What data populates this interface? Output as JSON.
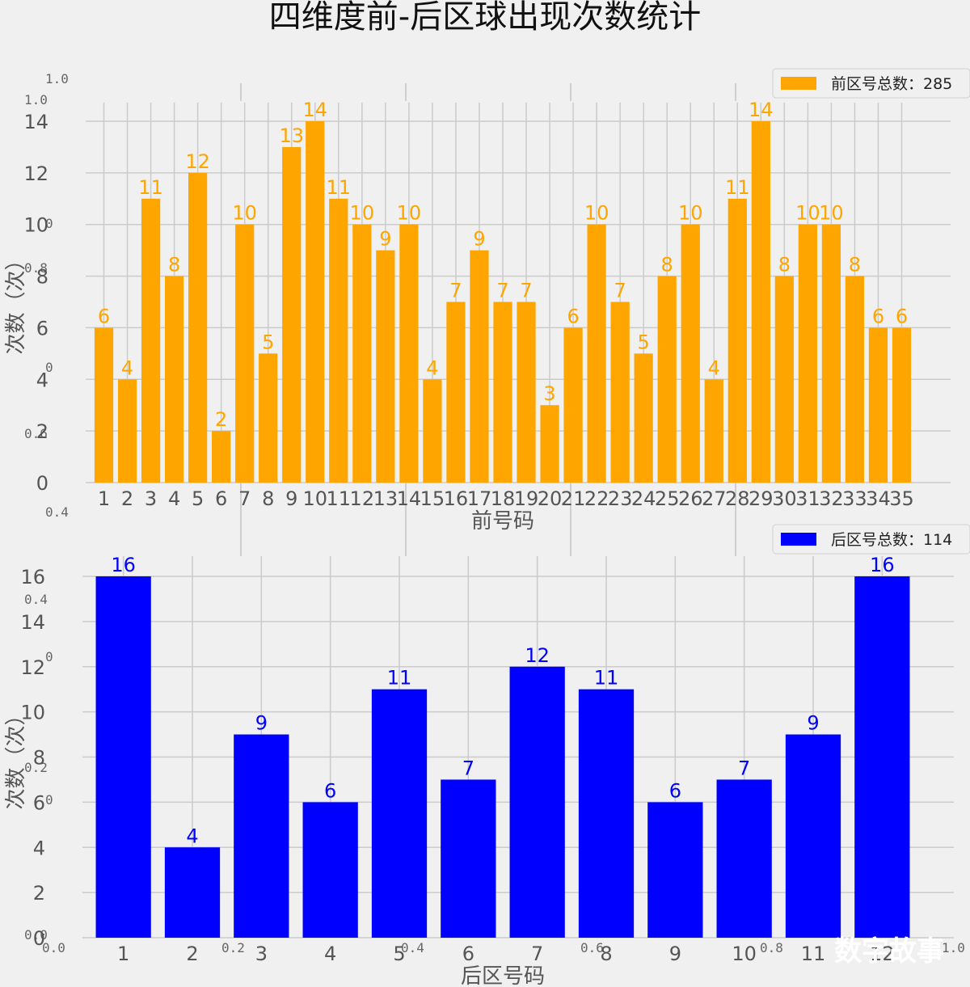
{
  "title": "四维度前-后区球出现次数统计",
  "watermark": "数字故事",
  "ghost_ticks": {
    "left": [
      "1.0",
      "1.0",
      "0",
      "0.8",
      "0",
      "0.6",
      "0.4",
      "0.4",
      "0",
      "0.2",
      "0",
      "0.0"
    ],
    "bottom": [
      "0.0",
      "0.2",
      "0.4",
      "0.6",
      "0.8",
      "1.0"
    ]
  },
  "chart_data": [
    {
      "type": "bar",
      "color": "#FFA500",
      "legend": "前区号总数：285",
      "legend_position": "top-right",
      "xlabel": "前号码",
      "ylabel": "次数（次）",
      "ylim": [
        0,
        14
      ],
      "yticks": [
        0,
        2,
        4,
        6,
        8,
        10,
        12,
        14
      ],
      "grid": true,
      "categories": [
        "1",
        "2",
        "3",
        "4",
        "5",
        "6",
        "7",
        "8",
        "9",
        "10",
        "11",
        "12",
        "13",
        "14",
        "15",
        "16",
        "17",
        "18",
        "19",
        "20",
        "21",
        "22",
        "23",
        "24",
        "25",
        "26",
        "27",
        "28",
        "29",
        "30",
        "31",
        "32",
        "33",
        "34",
        "35"
      ],
      "values": [
        6,
        4,
        11,
        8,
        12,
        2,
        10,
        5,
        13,
        14,
        11,
        10,
        9,
        10,
        4,
        7,
        9,
        7,
        7,
        3,
        6,
        10,
        7,
        5,
        8,
        10,
        4,
        11,
        14,
        8,
        10,
        10,
        8,
        6,
        6
      ]
    },
    {
      "type": "bar",
      "color": "#0000FF",
      "legend": "后区号总数：114",
      "legend_position": "top-right",
      "xlabel": "后区号码",
      "ylabel": "次数（次）",
      "ylim": [
        0,
        16
      ],
      "yticks": [
        0,
        2,
        4,
        6,
        8,
        10,
        12,
        14,
        16
      ],
      "grid": true,
      "categories": [
        "1",
        "2",
        "3",
        "4",
        "5",
        "6",
        "7",
        "8",
        "9",
        "10",
        "11",
        "12"
      ],
      "values": [
        16,
        4,
        9,
        6,
        11,
        7,
        12,
        11,
        6,
        7,
        9,
        16
      ]
    }
  ]
}
